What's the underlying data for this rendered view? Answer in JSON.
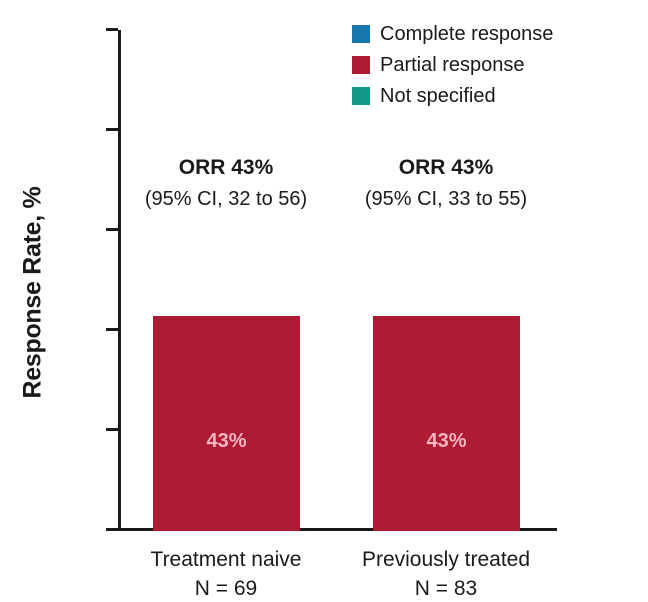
{
  "chart_data": {
    "type": "bar",
    "title": "",
    "ylabel": "Response Rate, %",
    "ylim": [
      0,
      100
    ],
    "yticks": [
      0,
      20,
      40,
      60,
      80,
      100
    ],
    "grid": false,
    "legend_position": "top-right",
    "categories": [
      "Treatment naive",
      "Previously treated"
    ],
    "n_labels": [
      "N = 69",
      "N = 83"
    ],
    "series": [
      {
        "name": "Partial response",
        "color": "#AE1B33",
        "values": [
          43,
          43
        ]
      }
    ],
    "bar_value_labels": [
      "43%",
      "43%"
    ],
    "bar_label_color": "#f7b6c2",
    "annotations": [
      {
        "line1": "ORR 43%",
        "line2": "(95% CI, 32 to 56)"
      },
      {
        "line1": "ORR 43%",
        "line2": "(95% CI, 33 to 55)"
      }
    ],
    "legend": [
      {
        "label": "Complete response",
        "color": "#1878AD"
      },
      {
        "label": "Partial response",
        "color": "#AE1B33"
      },
      {
        "label": "Not specified",
        "color": "#119A89"
      }
    ],
    "axis_color": "#1a1a1a"
  }
}
